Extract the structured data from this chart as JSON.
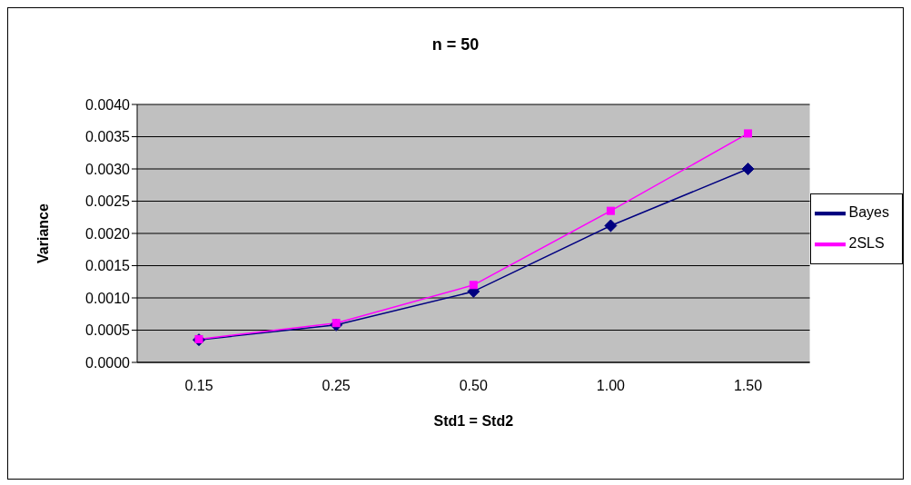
{
  "chart_data": {
    "type": "line",
    "title": "n = 50",
    "xlabel": "Std1 = Std2",
    "ylabel": "Variance",
    "categories": [
      "0.15",
      "0.25",
      "0.50",
      "1.00",
      "1.50"
    ],
    "series": [
      {
        "name": "Bayes",
        "color": "#000080",
        "marker": "diamond",
        "values": [
          0.00035,
          0.00058,
          0.0011,
          0.00212,
          0.003
        ]
      },
      {
        "name": "2SLS",
        "color": "#ff00ff",
        "marker": "square",
        "values": [
          0.00036,
          0.00061,
          0.0012,
          0.00235,
          0.00355
        ]
      }
    ],
    "ylim": [
      0,
      0.004
    ],
    "yticks": [
      {
        "value": 0,
        "label": "0.0000"
      },
      {
        "value": 0.0005,
        "label": "0.0005"
      },
      {
        "value": 0.001,
        "label": "0.0010"
      },
      {
        "value": 0.0015,
        "label": "0.0015"
      },
      {
        "value": 0.002,
        "label": "0.0020"
      },
      {
        "value": 0.0025,
        "label": "0.0025"
      },
      {
        "value": 0.003,
        "label": "0.0030"
      },
      {
        "value": 0.0035,
        "label": "0.0035"
      },
      {
        "value": 0.004,
        "label": "0.0040"
      }
    ],
    "grid": "y",
    "legend": "right",
    "line_style": "solid"
  }
}
